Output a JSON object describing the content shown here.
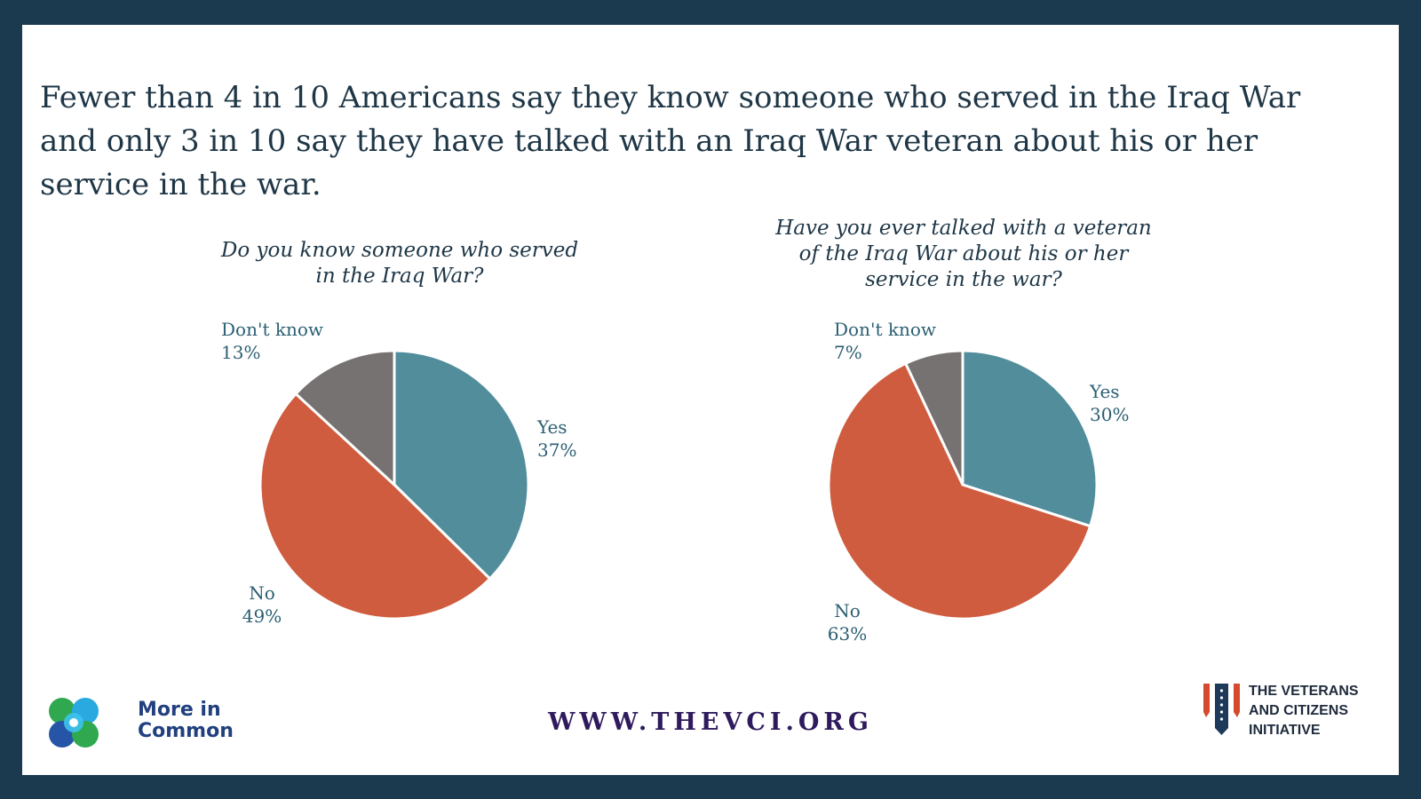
{
  "headline": "Fewer than 4 in 10 Americans say they know someone who served in the Iraq War and only 3 in 10 say they have talked with an Iraq War veteran about his or her service in the war.",
  "colors": {
    "yes": "#528d9c",
    "no": "#cf5c3e",
    "dont_know": "#767272",
    "frame": "#1b3a4f"
  },
  "chart_data": [
    {
      "type": "pie",
      "title": "Do you know someone who served in the Iraq War?",
      "slices": [
        {
          "label": "Yes",
          "value": 37,
          "value_label": "37%"
        },
        {
          "label": "No",
          "value": 49,
          "value_label": "49%"
        },
        {
          "label": "Don't know",
          "value": 13,
          "value_label": "13%"
        }
      ]
    },
    {
      "type": "pie",
      "title": "Have you ever talked with a veteran of the Iraq War about his or her service in the war?",
      "slices": [
        {
          "label": "Yes",
          "value": 30,
          "value_label": "30%"
        },
        {
          "label": "No",
          "value": 63,
          "value_label": "63%"
        },
        {
          "label": "Don't know",
          "value": 7,
          "value_label": "7%"
        }
      ]
    }
  ],
  "footer": {
    "website": "WWW.THEVCI.ORG",
    "logo_left": {
      "line1": "More in",
      "line2": "Common",
      "icon": "more-in-common-logo-icon"
    },
    "logo_right": {
      "line1": "THE VETERANS",
      "line2": "AND CITIZENS",
      "line3": "INITIATIVE",
      "icon": "vci-flag-logo-icon"
    }
  }
}
